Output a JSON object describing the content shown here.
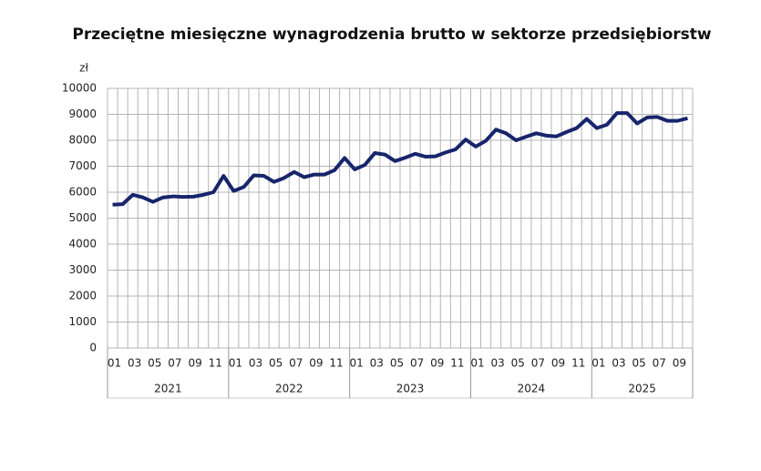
{
  "chart_data": {
    "type": "line",
    "title": "Przeciętne miesięczne wynagrodzenia brutto w sektorze przedsiębiorstw",
    "y_unit": "zł",
    "groups": [
      {
        "label": "2021",
        "categories": [
          "01",
          null,
          "03",
          null,
          "05",
          null,
          "07",
          null,
          "09",
          null,
          "11",
          null
        ]
      },
      {
        "label": "2022",
        "categories": [
          "01",
          null,
          "03",
          null,
          "05",
          null,
          "07",
          null,
          "09",
          null,
          "11",
          null
        ]
      },
      {
        "label": "2023",
        "categories": [
          "01",
          null,
          "03",
          null,
          "05",
          null,
          "07",
          null,
          "09",
          null,
          "11",
          null
        ]
      },
      {
        "label": "2024",
        "categories": [
          "01",
          null,
          "03",
          null,
          "05",
          null,
          "07",
          null,
          "09",
          null,
          "11",
          null
        ]
      },
      {
        "label": "2025",
        "categories": [
          "01",
          null,
          "03",
          null,
          "05",
          null,
          "07",
          null,
          "09",
          null
        ]
      }
    ],
    "values": [
      5520,
      5540,
      5900,
      5800,
      5630,
      5800,
      5840,
      5820,
      5830,
      5900,
      6000,
      6630,
      6050,
      6200,
      6650,
      6630,
      6400,
      6550,
      6780,
      6580,
      6680,
      6680,
      6850,
      7320,
      6880,
      7050,
      7510,
      7450,
      7200,
      7330,
      7480,
      7370,
      7380,
      7530,
      7650,
      8030,
      7760,
      7980,
      8410,
      8270,
      8000,
      8140,
      8270,
      8180,
      8150,
      8320,
      8470,
      8820,
      8470,
      8600,
      9050,
      9050,
      8650,
      8880,
      8900,
      8750,
      8750,
      8850
    ],
    "color": "#17256b",
    "ylim": [
      0,
      10000
    ],
    "yticks": [
      0,
      1000,
      2000,
      3000,
      4000,
      5000,
      6000,
      7000,
      8000,
      9000,
      10000
    ],
    "grid": true
  }
}
